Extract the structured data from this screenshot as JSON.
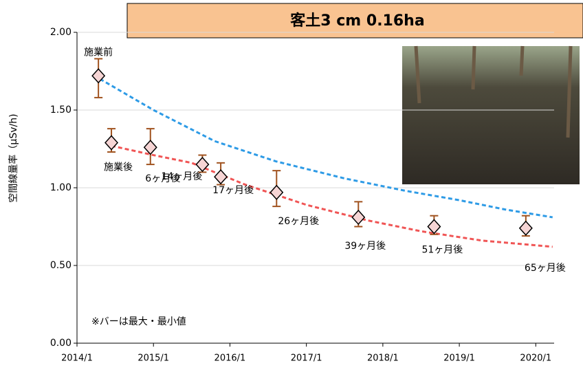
{
  "chart_data": {
    "type": "scatter",
    "title": "客土3 cm 0.16ha",
    "y_label": "空間線量率（μSv/h)",
    "note": "※バーは最大・最小値",
    "x": [
      2014.28,
      2014.45,
      2014.96,
      2015.64,
      2015.88,
      2016.61,
      2017.68,
      2018.67,
      2019.87
    ],
    "values": [
      1.72,
      1.29,
      1.26,
      1.15,
      1.07,
      0.97,
      0.81,
      0.75,
      0.74
    ],
    "max": [
      1.83,
      1.38,
      1.38,
      1.21,
      1.16,
      1.11,
      0.91,
      0.82,
      0.82
    ],
    "min": [
      1.58,
      1.23,
      1.15,
      1.1,
      1.02,
      0.88,
      0.75,
      0.7,
      0.69
    ],
    "point_labels": [
      "施業前",
      "施業後",
      "6ヶ月後",
      "14ヶ月後",
      "17ヶ月後",
      "26ヶ月後",
      "39ヶ月後",
      "51ヶ月後",
      "65ヶ月後"
    ],
    "trends": [
      {
        "color": "#2e9be6",
        "x": [
          2014.3,
          2015.0,
          2015.8,
          2016.6,
          2017.5,
          2018.3,
          2019.0,
          2019.6,
          2020.22
        ],
        "values": [
          1.7,
          1.5,
          1.3,
          1.17,
          1.06,
          0.98,
          0.92,
          0.86,
          0.81
        ]
      },
      {
        "color": "#f05555",
        "x": [
          2014.45,
          2015.0,
          2015.5,
          2016.2,
          2017.0,
          2017.8,
          2018.5,
          2019.3,
          2020.22
        ],
        "values": [
          1.27,
          1.21,
          1.16,
          1.02,
          0.89,
          0.79,
          0.72,
          0.66,
          0.62
        ]
      }
    ],
    "color": "#f6d5d5",
    "error_color": "#a0521e",
    "xlim": [
      2014,
      2020.24
    ],
    "ylim": [
      0,
      2
    ],
    "xticks": [
      {
        "value": 2014,
        "label": "2014/1"
      },
      {
        "value": 2015,
        "label": "2015/1"
      },
      {
        "value": 2016,
        "label": "2016/1"
      },
      {
        "value": 2017,
        "label": "2017/1"
      },
      {
        "value": 2018,
        "label": "2018/1"
      },
      {
        "value": 2019,
        "label": "2019/1"
      },
      {
        "value": 2020,
        "label": "2020/1"
      }
    ],
    "yticks": [
      {
        "value": 0,
        "label": "0.00"
      },
      {
        "value": 0.5,
        "label": "0.50"
      },
      {
        "value": 1,
        "label": "1.00"
      },
      {
        "value": 1.5,
        "label": "1.50"
      },
      {
        "value": 2,
        "label": "2.00"
      }
    ],
    "grid": true
  }
}
